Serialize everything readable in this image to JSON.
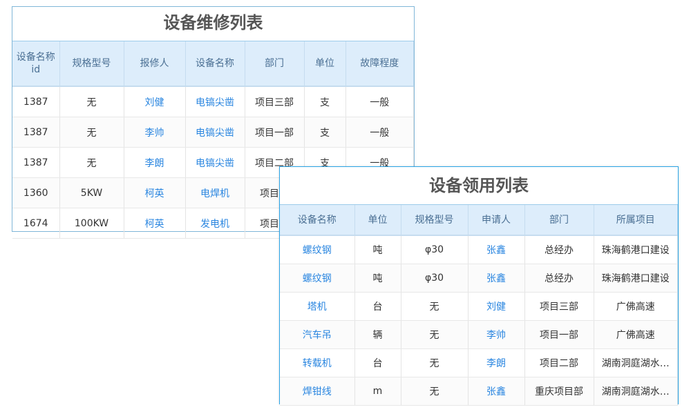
{
  "repair": {
    "title": "设备维修列表",
    "columns": [
      "设备名称id",
      "规格型号",
      "报修人",
      "设备名称",
      "部门",
      "单位",
      "故障程度"
    ],
    "rows": [
      [
        "1387",
        "无",
        "刘健",
        "电镐尖凿",
        "项目三部",
        "支",
        "一般"
      ],
      [
        "1387",
        "无",
        "李帅",
        "电镐尖凿",
        "项目一部",
        "支",
        "一般"
      ],
      [
        "1387",
        "无",
        "李朗",
        "电镐尖凿",
        "项目二部",
        "支",
        "一般"
      ],
      [
        "1360",
        "5KW",
        "柯英",
        "电焊机",
        "项目一",
        "",
        ""
      ],
      [
        "1674",
        "100KW",
        "柯英",
        "发电机",
        "项目一",
        "",
        ""
      ]
    ]
  },
  "usage": {
    "title": "设备领用列表",
    "columns": [
      "设备名称",
      "单位",
      "规格型号",
      "申请人",
      "部门",
      "所属项目"
    ],
    "rows": [
      [
        "螺纹钢",
        "吨",
        "φ30",
        "张鑫",
        "总经办",
        "珠海鹤港口建设"
      ],
      [
        "螺纹钢",
        "吨",
        "φ30",
        "张鑫",
        "总经办",
        "珠海鹤港口建设"
      ],
      [
        "塔机",
        "台",
        "无",
        "刘健",
        "项目三部",
        "广佛高速"
      ],
      [
        "汽车吊",
        "辆",
        "无",
        "李帅",
        "项目一部",
        "广佛高速"
      ],
      [
        "转载机",
        "台",
        "无",
        "李朗",
        "项目二部",
        "湖南洞庭湖水…"
      ],
      [
        "焊钳线",
        "m",
        "无",
        "张鑫",
        "重庆项目部",
        "湖南洞庭湖水…"
      ]
    ]
  },
  "colors": {
    "link": "#2a86e0",
    "header_bg": "#ddedfb",
    "border": "#2aa4e6"
  }
}
